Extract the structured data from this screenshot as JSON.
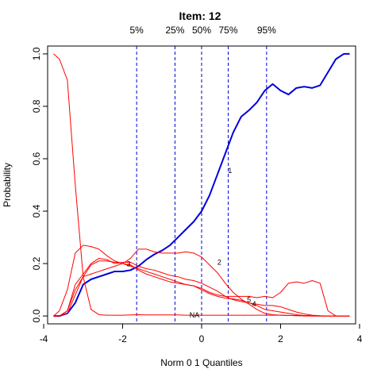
{
  "chart_data": {
    "type": "line",
    "title": "Item:  12",
    "xlabel": "Norm 0 1 Quantiles",
    "ylabel": "Probability",
    "xlim": [
      -3.9,
      3.9
    ],
    "ylim": [
      -0.03,
      1.03
    ],
    "x_ticks": [
      -4,
      -2,
      0,
      2,
      4
    ],
    "y_ticks": [
      0.0,
      0.2,
      0.4,
      0.6,
      0.8,
      1.0
    ],
    "x_tick_labels": [
      "-4",
      "-2",
      "0",
      "2",
      "4"
    ],
    "y_tick_labels": [
      "0.0",
      "0.2",
      "0.4",
      "0.6",
      "0.8",
      "1.0"
    ],
    "percentile_lines": [
      {
        "label": "5%",
        "x": -1.645
      },
      {
        "label": "25%",
        "x": -0.674
      },
      {
        "label": "50%",
        "x": 0.0
      },
      {
        "label": "75%",
        "x": 0.674
      },
      {
        "label": "95%",
        "x": 1.645
      }
    ],
    "colors": {
      "key": "#0000dd",
      "other": "#ff0000",
      "percentile": "#0000dd"
    },
    "x": [
      -3.75,
      -3.6,
      -3.4,
      -3.2,
      -3.0,
      -2.8,
      -2.6,
      -2.4,
      -2.2,
      -2.0,
      -1.8,
      -1.6,
      -1.4,
      -1.2,
      -1.0,
      -0.8,
      -0.6,
      -0.4,
      -0.2,
      0.0,
      0.2,
      0.4,
      0.6,
      0.8,
      1.0,
      1.2,
      1.4,
      1.6,
      1.8,
      2.0,
      2.2,
      2.4,
      2.6,
      2.8,
      3.0,
      3.2,
      3.4,
      3.6,
      3.75
    ],
    "series": [
      {
        "name": "1",
        "role": "key",
        "label_x": 0.72,
        "label_y": 0.555,
        "values": [
          0.0,
          0.0,
          0.01,
          0.05,
          0.12,
          0.14,
          0.15,
          0.16,
          0.17,
          0.17,
          0.175,
          0.19,
          0.215,
          0.235,
          0.25,
          0.27,
          0.3,
          0.33,
          0.36,
          0.4,
          0.46,
          0.54,
          0.62,
          0.7,
          0.76,
          0.785,
          0.815,
          0.86,
          0.885,
          0.86,
          0.845,
          0.87,
          0.875,
          0.87,
          0.88,
          0.93,
          0.98,
          1.0,
          1.0
        ]
      },
      {
        "name": "2",
        "role": "other",
        "label_x": 0.45,
        "label_y": 0.205,
        "values": [
          0.0,
          0.02,
          0.1,
          0.24,
          0.27,
          0.265,
          0.255,
          0.23,
          0.21,
          0.2,
          0.22,
          0.255,
          0.255,
          0.245,
          0.24,
          0.24,
          0.24,
          0.245,
          0.24,
          0.225,
          0.195,
          0.165,
          0.125,
          0.09,
          0.065,
          0.045,
          0.025,
          0.01,
          0.005,
          0.003,
          0.002,
          0.001,
          0.0,
          0.0,
          0.0,
          0.0,
          0.0,
          0.0,
          0.0
        ]
      },
      {
        "name": "3",
        "role": "other",
        "label_x": -1.85,
        "label_y": 0.198,
        "values": [
          0.0,
          0.0,
          0.02,
          0.12,
          0.16,
          0.2,
          0.22,
          0.215,
          0.2,
          0.205,
          0.205,
          0.19,
          0.18,
          0.175,
          0.165,
          0.155,
          0.15,
          0.14,
          0.135,
          0.125,
          0.11,
          0.095,
          0.075,
          0.062,
          0.055,
          0.05,
          0.04,
          0.025,
          0.02,
          0.015,
          0.01,
          0.005,
          0.002,
          0.001,
          0.0,
          0.0,
          0.0,
          0.0,
          0.0
        ]
      },
      {
        "name": "4",
        "role": "other",
        "label_x": 1.33,
        "label_y": 0.045,
        "values": [
          0.0,
          0.0,
          0.02,
          0.1,
          0.15,
          0.16,
          0.17,
          0.18,
          0.19,
          0.2,
          0.195,
          0.175,
          0.16,
          0.15,
          0.14,
          0.13,
          0.125,
          0.12,
          0.115,
          0.1,
          0.085,
          0.075,
          0.068,
          0.065,
          0.06,
          0.05,
          0.045,
          0.04,
          0.04,
          0.035,
          0.025,
          0.015,
          0.008,
          0.003,
          0.001,
          0.0,
          0.0,
          0.0,
          0.0
        ]
      },
      {
        "name": "5",
        "role": "other",
        "label_x": 1.2,
        "label_y": 0.062,
        "values": [
          0.0,
          0.0,
          0.01,
          0.08,
          0.15,
          0.195,
          0.21,
          0.21,
          0.205,
          0.2,
          0.19,
          0.18,
          0.17,
          0.16,
          0.15,
          0.14,
          0.13,
          0.12,
          0.115,
          0.105,
          0.09,
          0.08,
          0.075,
          0.075,
          0.075,
          0.075,
          0.07,
          0.075,
          0.07,
          0.09,
          0.125,
          0.13,
          0.125,
          0.135,
          0.125,
          0.02,
          0.0,
          0.0,
          0.0
        ]
      },
      {
        "name": "NA",
        "role": "other",
        "label_x": -0.18,
        "label_y": 0.003,
        "values": [
          1.0,
          0.98,
          0.9,
          0.5,
          0.15,
          0.025,
          0.005,
          0.003,
          0.003,
          0.003,
          0.004,
          0.005,
          0.004,
          0.004,
          0.004,
          0.004,
          0.004,
          0.003,
          0.003,
          0.003,
          0.003,
          0.003,
          0.003,
          0.003,
          0.003,
          0.003,
          0.003,
          0.003,
          0.003,
          0.003,
          0.002,
          0.002,
          0.001,
          0.0,
          0.0,
          0.0,
          0.0,
          0.0,
          0.0
        ]
      }
    ]
  }
}
